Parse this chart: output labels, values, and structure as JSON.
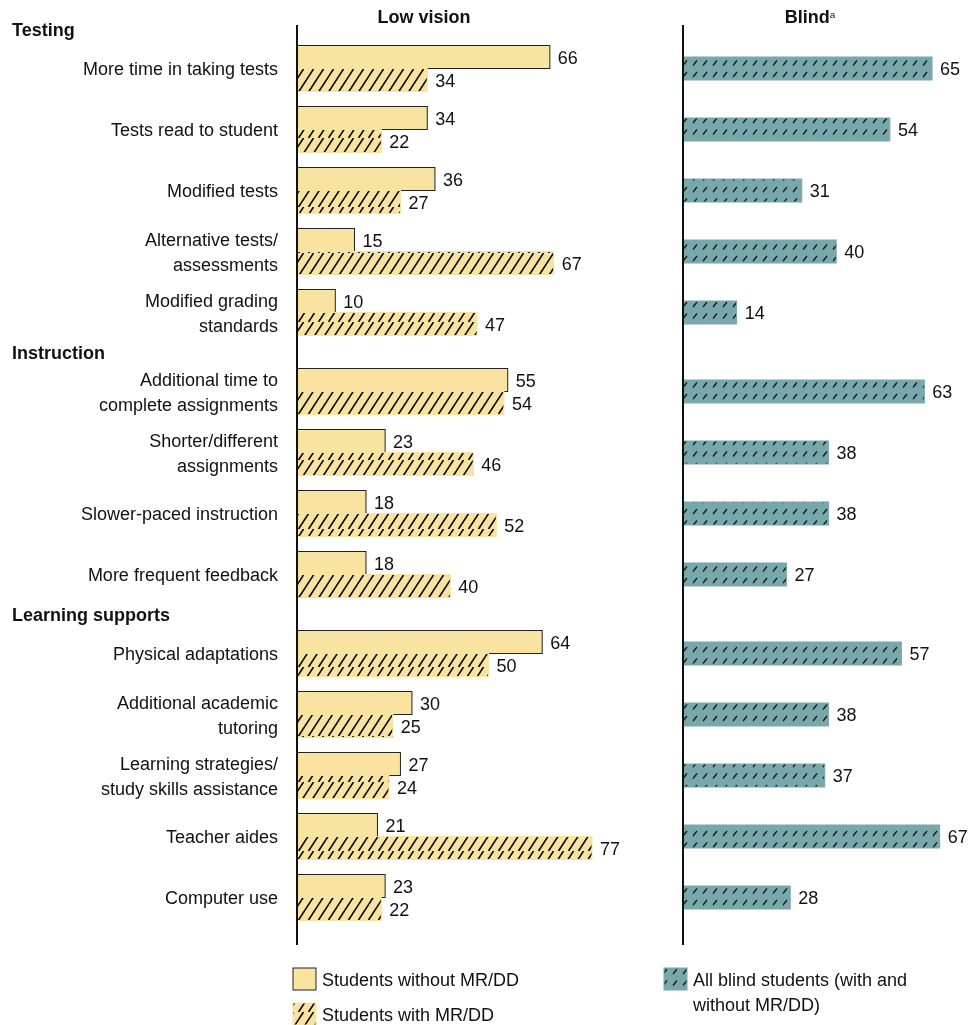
{
  "chart_data": [
    {
      "type": "bar",
      "orientation": "horizontal",
      "title": "Low vision",
      "tick_labels": "y",
      "data_labels": true,
      "legend": "bottom",
      "categories": [
        "More time in taking tests",
        "Tests read to student",
        "Modified tests",
        "Alternative tests/\nassessments",
        "Modified grading\nstandards",
        "Additional time to\ncomplete assignments",
        "Shorter/different\nassignments",
        "Slower-paced instruction",
        "More frequent feedback",
        "Physical adaptations",
        "Additional academic\ntutoring",
        "Learning strategies/\nstudy skills assistance",
        "Teacher aides",
        "Computer use"
      ],
      "annotations": [
        "Testing",
        "Instruction",
        "Learning supports"
      ],
      "series": [
        {
          "name": "Students without MR/DD",
          "color": "#f8e4a0",
          "values": [
            66,
            34,
            36,
            15,
            10,
            55,
            23,
            18,
            18,
            64,
            30,
            27,
            21,
            23
          ]
        },
        {
          "name": "Students with MR/DD",
          "color": "#f8e4a0",
          "values": [
            34,
            22,
            27,
            67,
            47,
            54,
            46,
            52,
            40,
            50,
            25,
            24,
            77,
            22
          ]
        }
      ]
    },
    {
      "type": "bar",
      "orientation": "horizontal",
      "title": "Blind$^{a}$",
      "tick_labels": false,
      "data_labels": true,
      "legend": "bottom",
      "categories": [
        null,
        null,
        null,
        null,
        null,
        null,
        null,
        null,
        null,
        null,
        null,
        null,
        null,
        null
      ],
      "series": [
        {
          "name": "All blind students (with and\nwithout MR/DD)",
          "color": "#78a8ac",
          "values": [
            65,
            54,
            31,
            40,
            14,
            63,
            38,
            38,
            27,
            57,
            38,
            37,
            67,
            28
          ]
        }
      ]
    }
  ]
}
